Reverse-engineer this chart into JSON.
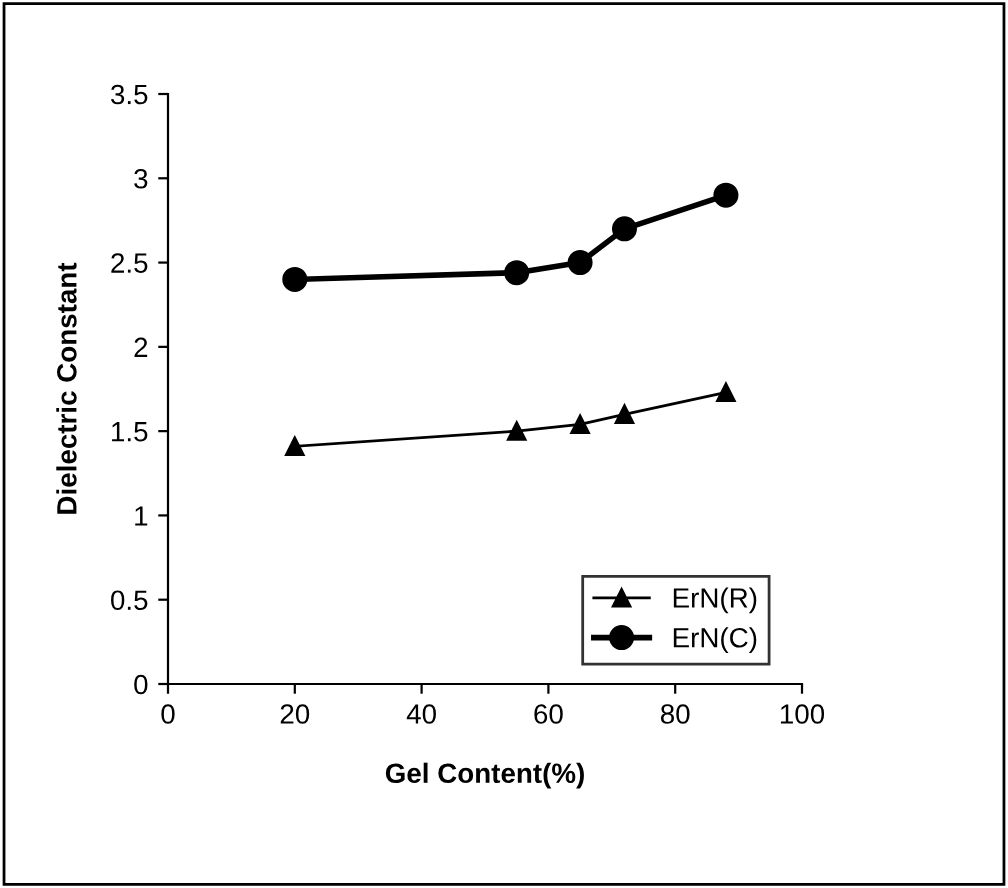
{
  "chart_data": {
    "type": "line",
    "xlabel": "Gel Content(%)",
    "ylabel": "Dielectric Constant",
    "x": [
      20,
      55,
      65,
      72,
      88
    ],
    "series": [
      {
        "name": "ErN(R)",
        "color": "#000000",
        "values": [
          1.41,
          1.5,
          1.54,
          1.6,
          1.73
        ],
        "marker": "triangle"
      },
      {
        "name": "ErN(C)",
        "color": "#000000",
        "values": [
          2.4,
          2.44,
          2.5,
          2.7,
          2.9
        ],
        "marker": "circle"
      }
    ],
    "xlim": [
      0,
      100
    ],
    "xticks": [
      0,
      20,
      40,
      60,
      80,
      100
    ],
    "ylim": [
      0,
      3.5
    ],
    "yticks": [
      0,
      0.5,
      1,
      1.5,
      2,
      2.5,
      3,
      3.5
    ],
    "grid": false,
    "legend": "bottom right",
    "line_style": "solid"
  }
}
